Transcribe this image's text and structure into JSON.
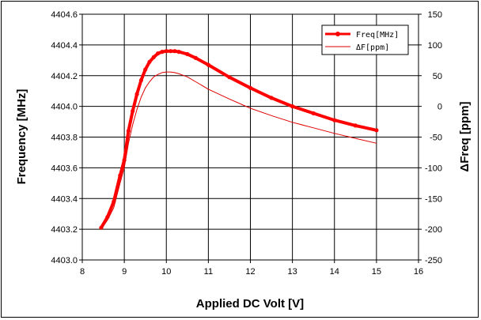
{
  "chart_data": {
    "type": "line",
    "title": "",
    "xlabel": "Applied DC Volt [V]",
    "ylabel": "Frequency [MHz]",
    "y2label": "ΔFreq [ppm]",
    "xlim": [
      8,
      16
    ],
    "ylim": [
      4403.0,
      4404.6
    ],
    "y2lim": [
      -250,
      150
    ],
    "xticks": [
      "8",
      "9",
      "10",
      "11",
      "12",
      "13",
      "14",
      "15",
      "16"
    ],
    "yticks": [
      "4403.0",
      "4403.2",
      "4403.4",
      "4403.6",
      "4403.8",
      "4404.0",
      "4404.2",
      "4404.4",
      "4404.6"
    ],
    "y2ticks": [
      "-250",
      "-200",
      "-150",
      "-100",
      "-50",
      "0",
      "50",
      "100",
      "150"
    ],
    "grid": true,
    "legend_position": "top-right",
    "series": [
      {
        "name": "Freq[MHz]",
        "axis": "left",
        "color": "#ff0000",
        "marker": "circle",
        "x": [
          8.45,
          8.6,
          8.75,
          8.9,
          9.0,
          9.1,
          9.2,
          9.3,
          9.4,
          9.5,
          9.6,
          9.7,
          9.8,
          9.9,
          10.0,
          10.1,
          10.2,
          10.3,
          10.5,
          10.7,
          11.0,
          11.5,
          12.0,
          12.5,
          13.0,
          13.5,
          14.0,
          14.5,
          15.0
        ],
        "values": [
          4403.21,
          4403.28,
          4403.38,
          4403.55,
          4403.65,
          4403.84,
          4403.97,
          4404.08,
          4404.17,
          4404.24,
          4404.29,
          4404.32,
          4404.345,
          4404.355,
          4404.36,
          4404.36,
          4404.36,
          4404.355,
          4404.34,
          4404.315,
          4404.27,
          4404.19,
          4404.12,
          4404.055,
          4404.0,
          4403.955,
          4403.91,
          4403.875,
          4403.845
        ]
      },
      {
        "name": "ΔF[ppm]",
        "axis": "right",
        "color": "#e00000",
        "marker": "none",
        "x": [
          8.45,
          8.6,
          8.75,
          8.9,
          9.0,
          9.1,
          9.2,
          9.3,
          9.4,
          9.5,
          9.6,
          9.7,
          9.8,
          9.9,
          10.0,
          10.1,
          10.2,
          10.3,
          10.5,
          10.7,
          11.0,
          11.5,
          12.0,
          12.5,
          13.0,
          13.5,
          14.0,
          14.5,
          15.0
        ],
        "values": [
          -200,
          -185,
          -165,
          -125,
          -100,
          -60,
          -30,
          -5,
          15,
          30,
          40,
          48,
          52,
          55,
          56,
          56,
          55,
          53,
          48,
          40,
          28,
          12,
          -3,
          -15,
          -26,
          -35,
          -44,
          -52,
          -60
        ]
      }
    ]
  }
}
